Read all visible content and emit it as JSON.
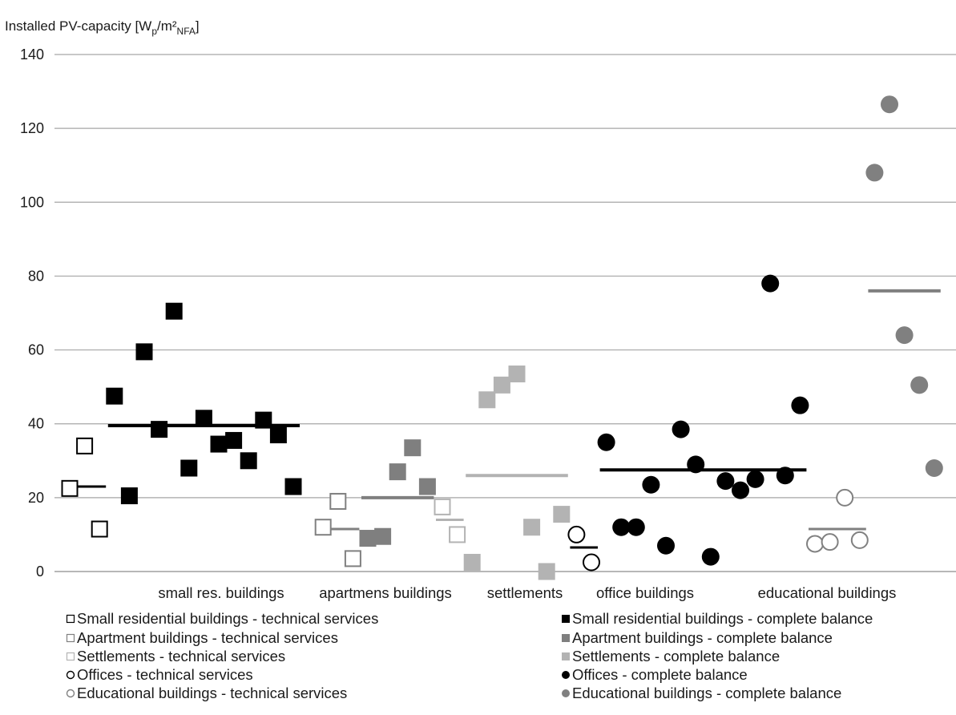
{
  "chart_data": {
    "type": "scatter",
    "ylabel": {
      "prefix": "Installed PV-capacity [W",
      "sub1": "p",
      "mid": "/m²",
      "sub2": "NFA",
      "suffix": "]"
    },
    "ylim": [
      0,
      140
    ],
    "yticks": [
      "0",
      "20",
      "40",
      "60",
      "80",
      "100",
      "120",
      "140"
    ],
    "grid": true,
    "legend_position": "bottom",
    "categories": [
      "small res. buildings",
      "apartmens buildings",
      "settlements",
      "office buildings",
      "educational buildings"
    ],
    "series": [
      {
        "name": "Small residential buildings - technical services",
        "marker": "square",
        "filled": false,
        "color": "#000000",
        "points": [
          {
            "x": 0.5,
            "y": 22.5
          },
          {
            "x": 1.0,
            "y": 34
          },
          {
            "x": 1.5,
            "y": 11.5
          }
        ],
        "mean": 23
      },
      {
        "name": "Small residential buildings - complete balance",
        "marker": "square",
        "filled": true,
        "color": "#000000",
        "points": [
          {
            "x": 2.0,
            "y": 47.5
          },
          {
            "x": 2.5,
            "y": 20.5
          },
          {
            "x": 3.0,
            "y": 59.5
          },
          {
            "x": 3.5,
            "y": 38.5
          },
          {
            "x": 4.0,
            "y": 70.5
          },
          {
            "x": 4.5,
            "y": 28
          },
          {
            "x": 5.0,
            "y": 41.5
          },
          {
            "x": 5.5,
            "y": 34.5
          },
          {
            "x": 6.0,
            "y": 35.5
          },
          {
            "x": 6.5,
            "y": 30
          },
          {
            "x": 7.0,
            "y": 41
          },
          {
            "x": 7.5,
            "y": 37
          },
          {
            "x": 8.0,
            "y": 23
          }
        ],
        "mean": 39.5
      },
      {
        "name": "Apartment buildings - technical services",
        "marker": "square",
        "filled": false,
        "color": "#808080",
        "points": [
          {
            "x": 9.0,
            "y": 12
          },
          {
            "x": 9.5,
            "y": 19
          },
          {
            "x": 10.0,
            "y": 3.5
          }
        ],
        "mean": 11.5
      },
      {
        "name": "Apartment buildings - complete balance",
        "marker": "square",
        "filled": true,
        "color": "#7f7f7f",
        "points": [
          {
            "x": 10.5,
            "y": 9
          },
          {
            "x": 11.0,
            "y": 9.5
          },
          {
            "x": 11.5,
            "y": 27
          },
          {
            "x": 12.0,
            "y": 33.5
          },
          {
            "x": 12.5,
            "y": 23
          }
        ],
        "mean": 20
      },
      {
        "name": "Settlements - technical services",
        "marker": "square",
        "filled": false,
        "color": "#b3b3b3",
        "points": [
          {
            "x": 13.0,
            "y": 17.5
          },
          {
            "x": 13.5,
            "y": 10
          }
        ],
        "mean": 14
      },
      {
        "name": "Settlements - complete balance",
        "marker": "square",
        "filled": true,
        "color": "#b3b3b3",
        "points": [
          {
            "x": 14.0,
            "y": 2.5
          },
          {
            "x": 14.5,
            "y": 46.5
          },
          {
            "x": 15.0,
            "y": 50.5
          },
          {
            "x": 15.5,
            "y": 53.5
          },
          {
            "x": 16.0,
            "y": 12
          },
          {
            "x": 16.5,
            "y": 0
          },
          {
            "x": 17.0,
            "y": 15.5
          }
        ],
        "mean": 26
      },
      {
        "name": "Offices - technical services",
        "marker": "circle",
        "filled": false,
        "color": "#000000",
        "points": [
          {
            "x": 17.5,
            "y": 10
          },
          {
            "x": 18.0,
            "y": 2.5
          }
        ],
        "mean": 6.5
      },
      {
        "name": "Offices - complete balance",
        "marker": "circle",
        "filled": true,
        "color": "#000000",
        "points": [
          {
            "x": 18.5,
            "y": 35
          },
          {
            "x": 19.0,
            "y": 12
          },
          {
            "x": 19.5,
            "y": 12
          },
          {
            "x": 20.0,
            "y": 23.5
          },
          {
            "x": 20.5,
            "y": 7
          },
          {
            "x": 21.0,
            "y": 38.5
          },
          {
            "x": 21.5,
            "y": 29
          },
          {
            "x": 22.0,
            "y": 4
          },
          {
            "x": 22.5,
            "y": 24.5
          },
          {
            "x": 23.0,
            "y": 22
          },
          {
            "x": 23.5,
            "y": 25
          },
          {
            "x": 24.0,
            "y": 78
          },
          {
            "x": 24.5,
            "y": 26
          },
          {
            "x": 25.0,
            "y": 45
          }
        ],
        "mean": 27.5
      },
      {
        "name": "Educational buildings - technical services",
        "marker": "circle",
        "filled": false,
        "color": "#808080",
        "points": [
          {
            "x": 25.5,
            "y": 7.5
          },
          {
            "x": 26.0,
            "y": 8
          },
          {
            "x": 26.5,
            "y": 20
          },
          {
            "x": 27.0,
            "y": 8.5
          }
        ],
        "mean": 11.5
      },
      {
        "name": "Educational buildings - complete balance",
        "marker": "circle",
        "filled": true,
        "color": "#808080",
        "points": [
          {
            "x": 27.5,
            "y": 108
          },
          {
            "x": 28.0,
            "y": 126.5
          },
          {
            "x": 28.5,
            "y": 64
          },
          {
            "x": 29.0,
            "y": 50.5
          },
          {
            "x": 29.5,
            "y": 28
          }
        ],
        "mean": 76
      }
    ]
  }
}
